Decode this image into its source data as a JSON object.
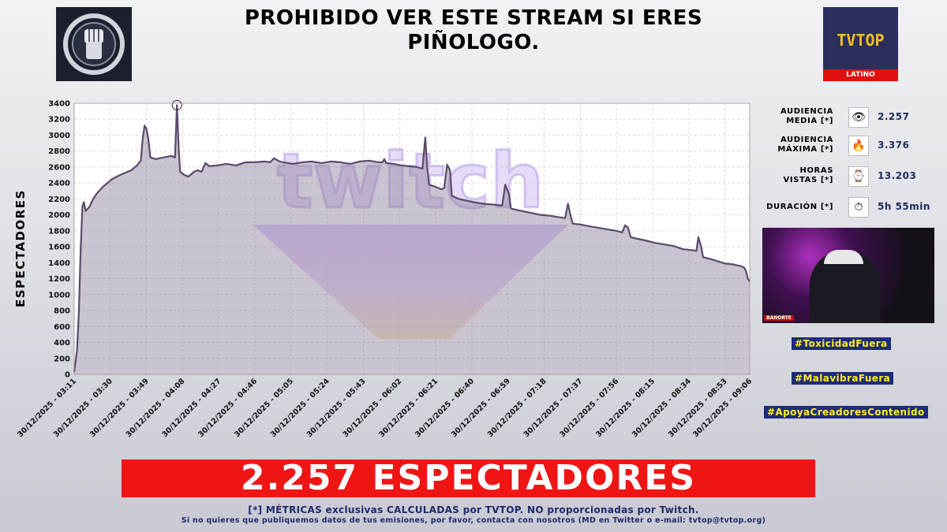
{
  "header": {
    "title_line1": "PROHIBIDO VER ESTE STREAM SI ERES",
    "title_line2": "PIÑOLOGO."
  },
  "logos": {
    "left_icon": "fist-icon",
    "right_text": "TVTOP",
    "right_subtext": "LATINO"
  },
  "metrics": [
    {
      "label1": "AUDIENCIA",
      "label2": "MEDIA [*]",
      "icon": "eye-icon",
      "glyph": "👁",
      "value": "2.257"
    },
    {
      "label1": "AUDIENCIA",
      "label2": "MÁXIMA [*]",
      "icon": "fire-icon",
      "glyph": "🔥",
      "value": "3.376"
    },
    {
      "label1": "HORAS",
      "label2": "VISTAS [*]",
      "icon": "watch-icon",
      "glyph": "⌚",
      "value": "13.203"
    },
    {
      "label1": "",
      "label2": "DURACIÓN [*]",
      "icon": "stopwatch-icon",
      "glyph": "⏱",
      "value": "5h 55min"
    }
  ],
  "hashtags": [
    "#ToxicidadFuera",
    "#MalavibraFuera",
    "#ApoyaCreadoresContenido"
  ],
  "webcam": {
    "tag": "BANORTE"
  },
  "banner": {
    "text": "2.257 ESPECTADORES"
  },
  "footer": {
    "line1": "[*] MÉTRICAS exclusivas CALCULADAS por TVTOP. NO proporcionadas por Twitch.",
    "line2": "Si no quieres que publiquemos datos de tus emisiones, por favor, contacta con nosotros (MD en Twitter o e-mail: tvtop@tvtop.org)"
  },
  "watermark": "twitch",
  "chart_data": {
    "type": "area",
    "ylabel": "ESPECTADORES",
    "ylim": [
      0,
      3400
    ],
    "yticks": [
      0,
      200,
      400,
      600,
      800,
      1000,
      1200,
      1400,
      1600,
      1800,
      2000,
      2200,
      2400,
      2600,
      2800,
      3000,
      3200,
      3400
    ],
    "xlim_minutes": [
      0,
      355
    ],
    "xticks": [
      {
        "t": 0,
        "label": "30/12/2025 - 03:11"
      },
      {
        "t": 19,
        "label": "30/12/2025 - 03:30"
      },
      {
        "t": 38,
        "label": "30/12/2025 - 03:49"
      },
      {
        "t": 57,
        "label": "30/12/2025 - 04:08"
      },
      {
        "t": 76,
        "label": "30/12/2025 - 04:27"
      },
      {
        "t": 95,
        "label": "30/12/2025 - 04:46"
      },
      {
        "t": 114,
        "label": "30/12/2025 - 05:05"
      },
      {
        "t": 133,
        "label": "30/12/2025 - 05:24"
      },
      {
        "t": 152,
        "label": "30/12/2025 - 05:43"
      },
      {
        "t": 171,
        "label": "30/12/2025 - 06:02"
      },
      {
        "t": 190,
        "label": "30/12/2025 - 06:21"
      },
      {
        "t": 209,
        "label": "30/12/2025 - 06:40"
      },
      {
        "t": 228,
        "label": "30/12/2025 - 06:59"
      },
      {
        "t": 247,
        "label": "30/12/2025 - 07:18"
      },
      {
        "t": 266,
        "label": "30/12/2025 - 07:37"
      },
      {
        "t": 285,
        "label": "30/12/2025 - 07:56"
      },
      {
        "t": 304,
        "label": "30/12/2025 - 08:15"
      },
      {
        "t": 323,
        "label": "30/12/2025 - 08:34"
      },
      {
        "t": 342,
        "label": "30/12/2025 - 08:53"
      },
      {
        "t": 355,
        "label": "30/12/2025 - 09:06"
      }
    ],
    "peak": {
      "t": 54,
      "value": 3376
    },
    "series": [
      {
        "points": [
          [
            0,
            30
          ],
          [
            1.5,
            300
          ],
          [
            2.5,
            800
          ],
          [
            3.3,
            1500
          ],
          [
            4.3,
            2100
          ],
          [
            5.1,
            2160
          ],
          [
            6,
            2050
          ],
          [
            8,
            2100
          ],
          [
            10,
            2200
          ],
          [
            12,
            2270
          ],
          [
            15,
            2350
          ],
          [
            20,
            2450
          ],
          [
            25,
            2510
          ],
          [
            30,
            2560
          ],
          [
            33,
            2620
          ],
          [
            35,
            2680
          ],
          [
            36,
            2950
          ],
          [
            37,
            3120
          ],
          [
            38,
            3080
          ],
          [
            39,
            2950
          ],
          [
            40,
            2720
          ],
          [
            43,
            2700
          ],
          [
            47,
            2720
          ],
          [
            51,
            2740
          ],
          [
            53,
            2720
          ],
          [
            54,
            3376
          ],
          [
            55,
            2800
          ],
          [
            55.7,
            2540
          ],
          [
            58,
            2500
          ],
          [
            60,
            2480
          ],
          [
            63,
            2540
          ],
          [
            65,
            2560
          ],
          [
            67,
            2540
          ],
          [
            68,
            2600
          ],
          [
            69,
            2650
          ],
          [
            71,
            2610
          ],
          [
            75,
            2620
          ],
          [
            80,
            2640
          ],
          [
            85,
            2620
          ],
          [
            90,
            2660
          ],
          [
            95,
            2660
          ],
          [
            100,
            2670
          ],
          [
            103,
            2660
          ],
          [
            105,
            2710
          ],
          [
            108,
            2670
          ],
          [
            110,
            2660
          ],
          [
            115,
            2640
          ],
          [
            120,
            2660
          ],
          [
            125,
            2670
          ],
          [
            130,
            2650
          ],
          [
            135,
            2670
          ],
          [
            140,
            2660
          ],
          [
            145,
            2640
          ],
          [
            150,
            2670
          ],
          [
            155,
            2680
          ],
          [
            160,
            2660
          ],
          [
            162,
            2660
          ],
          [
            163,
            2700
          ],
          [
            164,
            2650
          ],
          [
            168,
            2640
          ],
          [
            172,
            2620
          ],
          [
            176,
            2610
          ],
          [
            180,
            2600
          ],
          [
            183,
            2580
          ],
          [
            184.5,
            2970
          ],
          [
            185.5,
            2600
          ],
          [
            186.5,
            2380
          ],
          [
            190,
            2350
          ],
          [
            193,
            2320
          ],
          [
            194.5,
            2340
          ],
          [
            196,
            2630
          ],
          [
            197.5,
            2560
          ],
          [
            198.5,
            2240
          ],
          [
            202,
            2200
          ],
          [
            206,
            2180
          ],
          [
            210,
            2160
          ],
          [
            215,
            2140
          ],
          [
            220,
            2130
          ],
          [
            224,
            2120
          ],
          [
            225,
            2120
          ],
          [
            226.5,
            2380
          ],
          [
            228.5,
            2260
          ],
          [
            229.5,
            2080
          ],
          [
            233,
            2060
          ],
          [
            237,
            2040
          ],
          [
            241,
            2020
          ],
          [
            245,
            2000
          ],
          [
            250,
            1990
          ],
          [
            255,
            1970
          ],
          [
            258,
            1960
          ],
          [
            259.5,
            2140
          ],
          [
            261,
            1980
          ],
          [
            262,
            1890
          ],
          [
            266,
            1880
          ],
          [
            270,
            1860
          ],
          [
            275,
            1840
          ],
          [
            280,
            1820
          ],
          [
            285,
            1800
          ],
          [
            288,
            1780
          ],
          [
            289.5,
            1870
          ],
          [
            291,
            1840
          ],
          [
            292.5,
            1720
          ],
          [
            296,
            1700
          ],
          [
            300,
            1680
          ],
          [
            305,
            1650
          ],
          [
            310,
            1630
          ],
          [
            315,
            1610
          ],
          [
            320,
            1570
          ],
          [
            324,
            1560
          ],
          [
            327,
            1550
          ],
          [
            328,
            1720
          ],
          [
            329.5,
            1600
          ],
          [
            330.5,
            1470
          ],
          [
            334,
            1450
          ],
          [
            338,
            1420
          ],
          [
            342,
            1390
          ],
          [
            346,
            1380
          ],
          [
            350,
            1360
          ],
          [
            352,
            1340
          ],
          [
            353,
            1300
          ],
          [
            354,
            1200
          ],
          [
            355,
            1160
          ]
        ]
      }
    ]
  }
}
